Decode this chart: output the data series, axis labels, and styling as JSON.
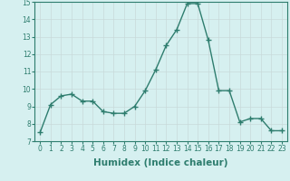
{
  "x": [
    0,
    1,
    2,
    3,
    4,
    5,
    6,
    7,
    8,
    9,
    10,
    11,
    12,
    13,
    14,
    15,
    16,
    17,
    18,
    19,
    20,
    21,
    22,
    23
  ],
  "y": [
    7.5,
    9.1,
    9.6,
    9.7,
    9.3,
    9.3,
    8.7,
    8.6,
    8.6,
    9.0,
    9.9,
    11.1,
    12.5,
    13.4,
    14.9,
    14.9,
    12.8,
    9.9,
    9.9,
    8.1,
    8.3,
    8.3,
    7.6,
    7.6
  ],
  "line_color": "#2e7d6e",
  "marker": "D",
  "marker_size": 2.2,
  "bg_color": "#d6f0f0",
  "grid_color": "#c8dada",
  "xlabel": "Humidex (Indice chaleur)",
  "ylim": [
    7,
    15
  ],
  "xlim_min": -0.5,
  "xlim_max": 23.5,
  "yticks": [
    7,
    8,
    9,
    10,
    11,
    12,
    13,
    14,
    15
  ],
  "xticks": [
    0,
    1,
    2,
    3,
    4,
    5,
    6,
    7,
    8,
    9,
    10,
    11,
    12,
    13,
    14,
    15,
    16,
    17,
    18,
    19,
    20,
    21,
    22,
    23
  ],
  "tick_fontsize": 5.5,
  "xlabel_fontsize": 7.5,
  "linewidth": 1.0
}
